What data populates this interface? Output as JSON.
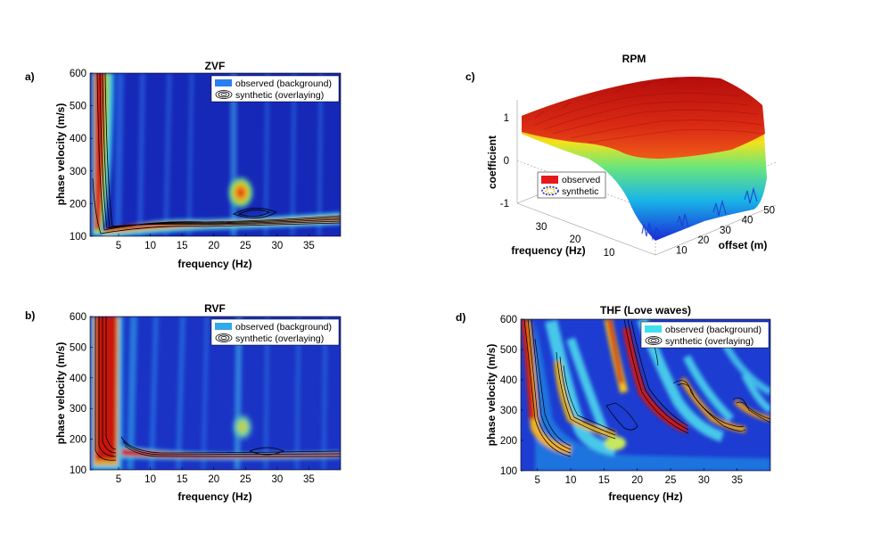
{
  "figure": {
    "panels": [
      {
        "letter": "a)",
        "title": "ZVF"
      },
      {
        "letter": "b)",
        "title": "RVF"
      },
      {
        "letter": "c)",
        "title": "RPM"
      },
      {
        "letter": "d)",
        "title": "THF (Love waves)"
      }
    ]
  },
  "chart_data": [
    {
      "type": "heatmap",
      "title": "ZVF",
      "xlabel": "frequency (Hz)",
      "ylabel": "phase velocity (m/s)",
      "xlim": [
        0.5,
        40
      ],
      "ylim": [
        100,
        600
      ],
      "xticks": [
        "5",
        "10",
        "15",
        "20",
        "25",
        "30",
        "35"
      ],
      "yticks": [
        "100",
        "200",
        "300",
        "400",
        "500",
        "600"
      ],
      "legend": [
        "observed (background)",
        "synthetic (overlaying)"
      ],
      "legend_position": "top-right",
      "fundamental_mode": [
        {
          "f": 2,
          "v": 600
        },
        {
          "f": 3,
          "v": 300
        },
        {
          "f": 4,
          "v": 220
        },
        {
          "f": 6,
          "v": 170
        },
        {
          "f": 10,
          "v": 148
        },
        {
          "f": 15,
          "v": 140
        },
        {
          "f": 20,
          "v": 136
        },
        {
          "f": 25,
          "v": 138
        },
        {
          "f": 30,
          "v": 145
        },
        {
          "f": 40,
          "v": 150
        }
      ],
      "highlight": {
        "f": 24.5,
        "v": 210
      }
    },
    {
      "type": "heatmap",
      "title": "RVF",
      "xlabel": "frequency (Hz)",
      "ylabel": "phase velocity (m/s)",
      "xlim": [
        0.5,
        40
      ],
      "ylim": [
        100,
        600
      ],
      "xticks": [
        "5",
        "10",
        "15",
        "20",
        "25",
        "30",
        "35"
      ],
      "yticks": [
        "100",
        "200",
        "300",
        "400",
        "500",
        "600"
      ],
      "legend": [
        "observed (background)",
        "synthetic (overlaying)"
      ],
      "legend_position": "top-right",
      "fundamental_mode": [
        {
          "f": 5.5,
          "v": 600
        },
        {
          "f": 6,
          "v": 250
        },
        {
          "f": 7,
          "v": 170
        },
        {
          "f": 10,
          "v": 150
        },
        {
          "f": 15,
          "v": 145
        },
        {
          "f": 20,
          "v": 143
        },
        {
          "f": 25,
          "v": 145
        },
        {
          "f": 30,
          "v": 152
        },
        {
          "f": 40,
          "v": 158
        }
      ],
      "highlight": {
        "f": 24.5,
        "v": 240
      }
    },
    {
      "type": "surface",
      "title": "RPM",
      "xlabel": "offset (m)",
      "ylabel": "frequency (Hz)",
      "zlabel": "coefficient",
      "offset_ticks": [
        "10",
        "20",
        "30",
        "40",
        "50"
      ],
      "frequency_ticks": [
        "10",
        "20",
        "30"
      ],
      "zticks": [
        "-1",
        "0",
        "1"
      ],
      "zlim": [
        -1,
        1
      ],
      "legend": [
        "observed",
        "synthetic"
      ],
      "legend_position": "center-left"
    },
    {
      "type": "heatmap",
      "title": "THF (Love waves)",
      "xlabel": "frequency (Hz)",
      "ylabel": "phase velocity (m/s)",
      "xlim": [
        2.5,
        40
      ],
      "ylim": [
        100,
        600
      ],
      "xticks": [
        "5",
        "10",
        "15",
        "20",
        "25",
        "30",
        "35"
      ],
      "yticks": [
        "100",
        "200",
        "300",
        "400",
        "500",
        "600"
      ],
      "legend": [
        "observed (background)",
        "synthetic (overlaying)"
      ],
      "legend_position": "top-right",
      "modes": [
        [
          {
            "f": 3.5,
            "v": 600
          },
          {
            "f": 5,
            "v": 330
          },
          {
            "f": 7,
            "v": 200
          },
          {
            "f": 9,
            "v": 180
          }
        ],
        [
          {
            "f": 8.5,
            "v": 480
          },
          {
            "f": 10,
            "v": 300
          },
          {
            "f": 12,
            "v": 240
          },
          {
            "f": 15,
            "v": 200
          }
        ],
        [
          {
            "f": 17.5,
            "v": 600
          },
          {
            "f": 19,
            "v": 400
          },
          {
            "f": 21,
            "v": 300
          },
          {
            "f": 24,
            "v": 250
          },
          {
            "f": 27,
            "v": 230
          }
        ],
        [
          {
            "f": 26,
            "v": 410
          },
          {
            "f": 28,
            "v": 320
          },
          {
            "f": 31,
            "v": 260
          },
          {
            "f": 34,
            "v": 230
          }
        ],
        [
          {
            "f": 35,
            "v": 330
          },
          {
            "f": 37,
            "v": 290
          },
          {
            "f": 40,
            "v": 270
          }
        ]
      ]
    }
  ]
}
